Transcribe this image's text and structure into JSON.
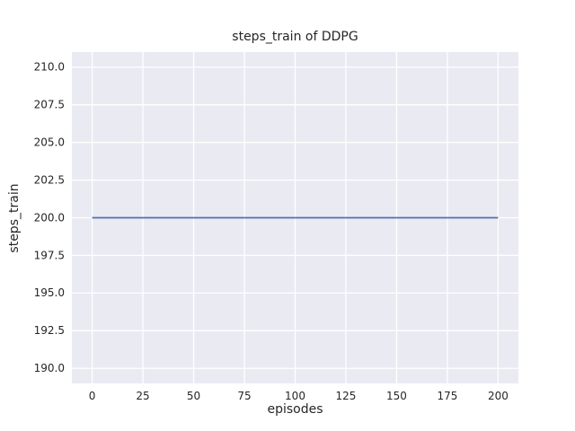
{
  "chart_data": {
    "type": "line",
    "title": "steps_train of DDPG",
    "xlabel": "episodes",
    "ylabel": "steps_train",
    "series": [
      {
        "name": "steps_train",
        "x": [
          0,
          200
        ],
        "y": [
          200,
          200
        ]
      }
    ],
    "xlim": [
      -10,
      210
    ],
    "ylim": [
      189,
      211
    ],
    "xtick_labels": [
      "0",
      "25",
      "50",
      "75",
      "100",
      "125",
      "150",
      "175",
      "200"
    ],
    "ytick_labels": [
      "190.0",
      "192.5",
      "195.0",
      "197.5",
      "200.0",
      "202.5",
      "205.0",
      "207.5",
      "210.0"
    ],
    "grid": true,
    "legend": "none",
    "style": "seaborn-darkgrid"
  },
  "colors": {
    "line": "#4c72b0",
    "plot_background": "#eaeaf2",
    "gridline": "#ffffff",
    "text": "#262626",
    "figure_background": "#ffffff"
  }
}
